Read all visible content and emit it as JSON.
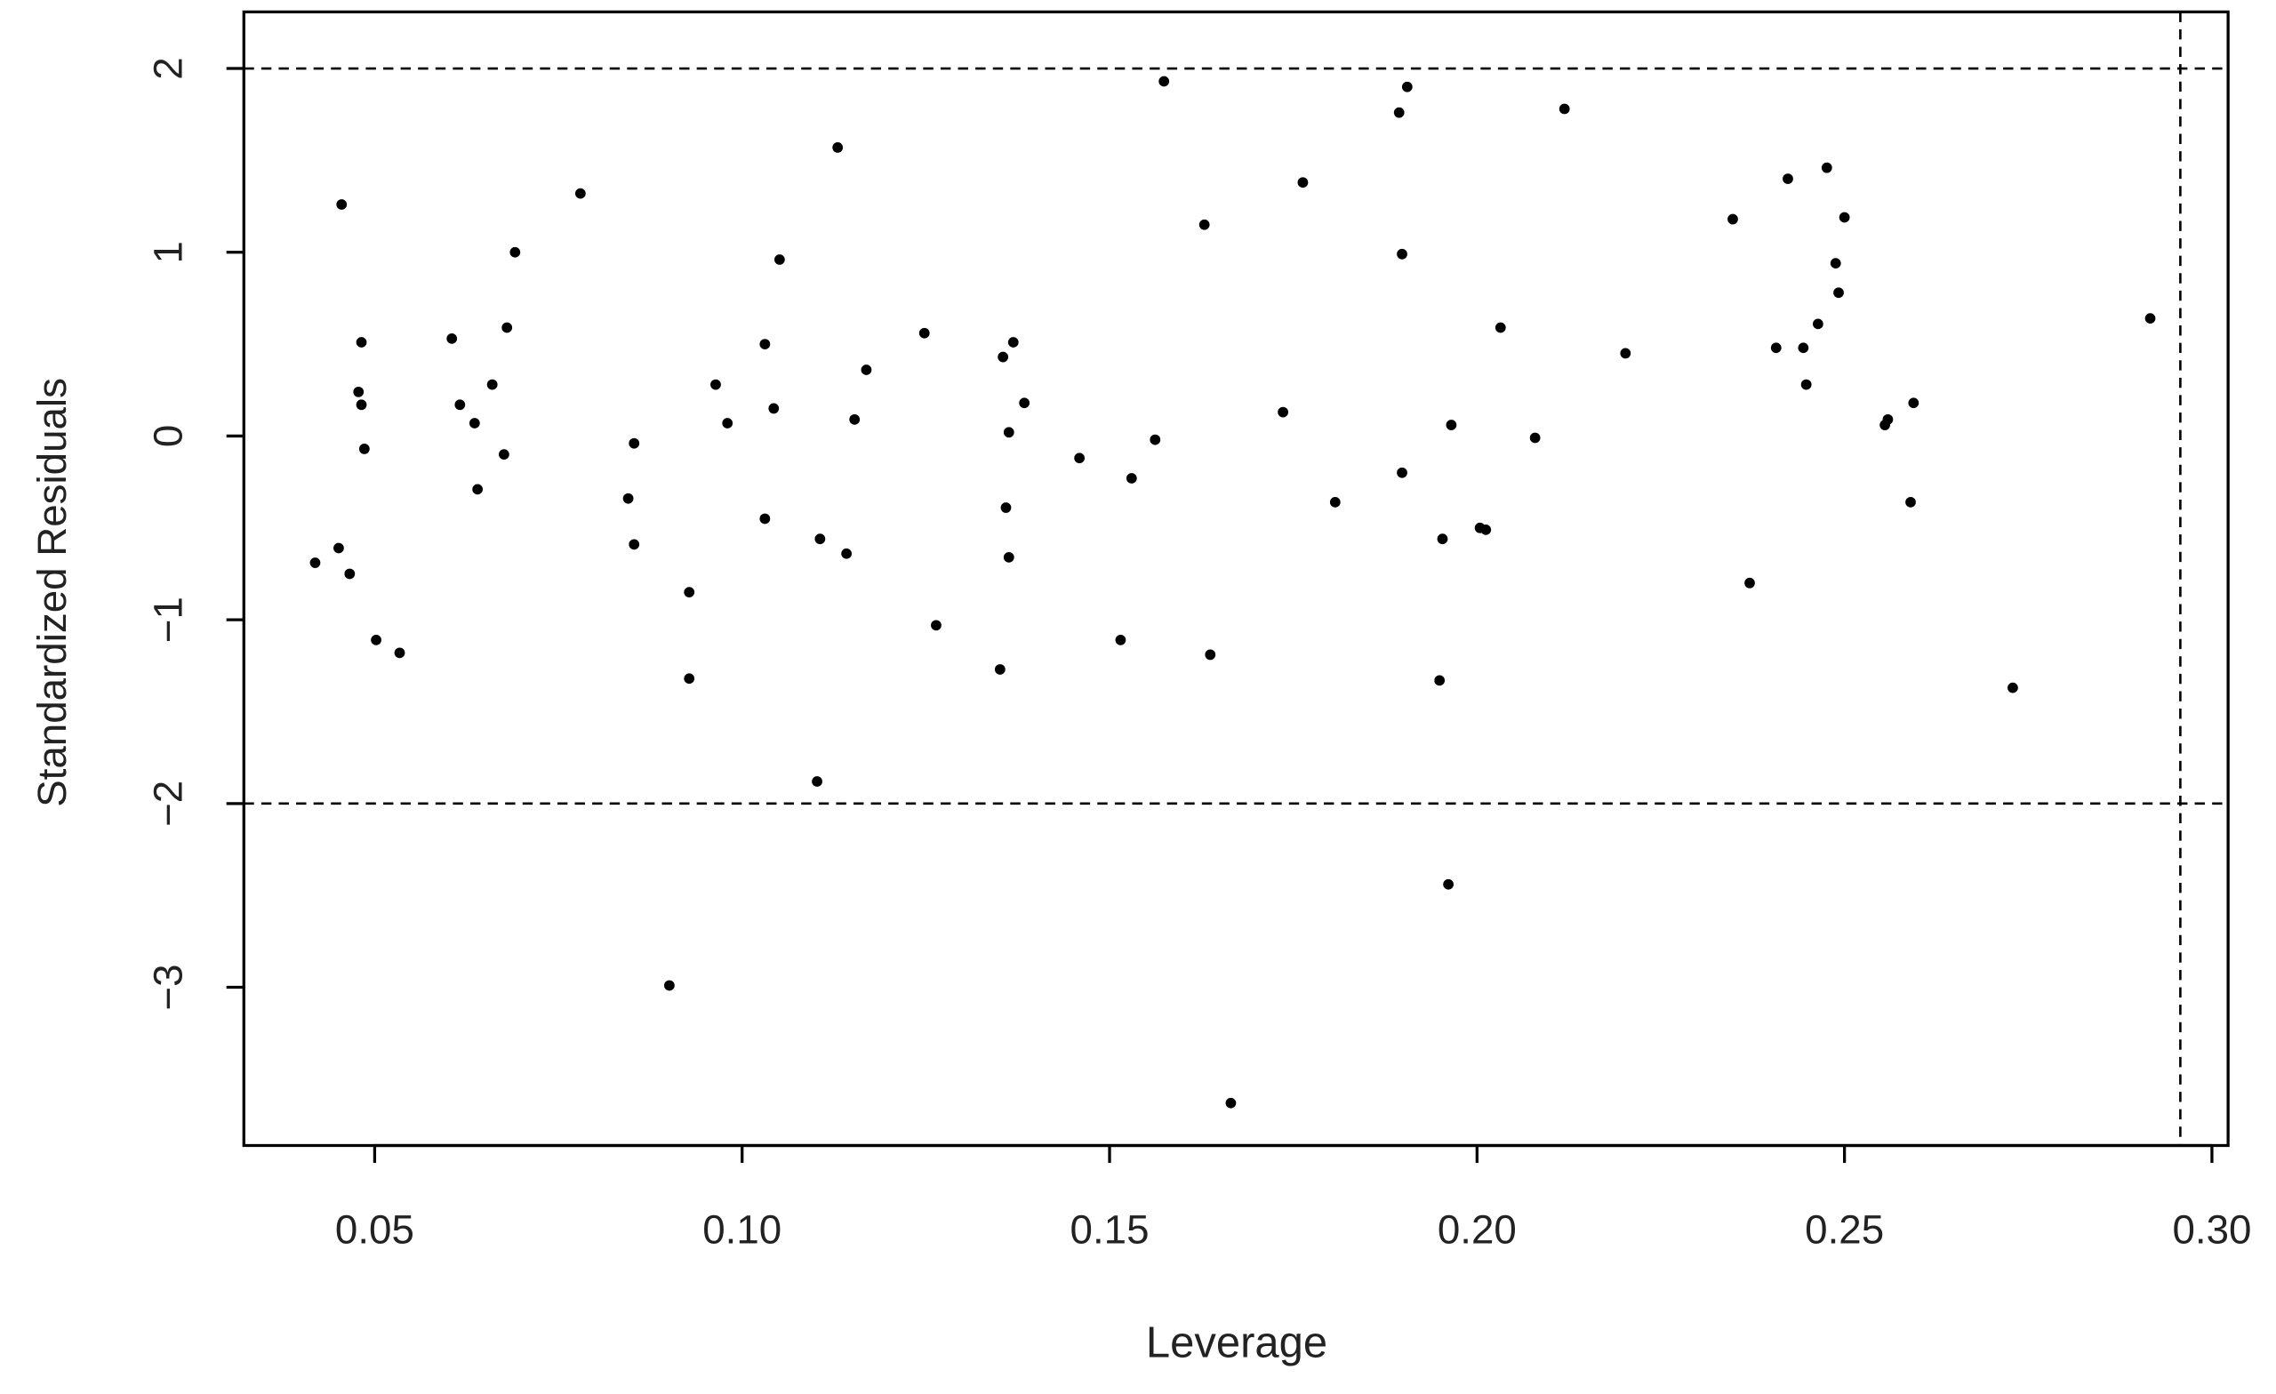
{
  "chart_data": {
    "type": "scatter",
    "x_label": "Leverage",
    "y_label": "Standardized Residuals",
    "xlim": [
      0.0322,
      0.3022
    ],
    "ylim": [
      -3.861,
      2.308
    ],
    "xticks": [
      0.05,
      {
        "value": 0.1,
        "label": "0.10"
      },
      0.15,
      {
        "value": 0.2,
        "label": "0.20"
      },
      0.25,
      {
        "value": 0.3,
        "label": "0.30"
      }
    ],
    "yticks": [
      {
        "value": -3,
        "label": "−3"
      },
      {
        "value": -2,
        "label": "−2"
      },
      {
        "value": -1,
        "label": "−1"
      },
      0,
      1,
      2
    ],
    "hlines": [
      2,
      -2
    ],
    "vlines": [
      0.2957
    ],
    "color": "#000000",
    "x": [
      0.0419,
      0.0451,
      0.0455,
      0.0466,
      0.0478,
      0.0482,
      0.0482,
      0.0486,
      0.0502,
      0.0534,
      0.0605,
      0.0616,
      0.0636,
      0.064,
      0.066,
      0.0676,
      0.068,
      0.0691,
      0.078,
      0.0845,
      0.0853,
      0.0853,
      0.0901,
      0.0928,
      0.0928,
      0.0964,
      0.098,
      0.1031,
      0.1031,
      0.1043,
      0.1051,
      0.1102,
      0.1106,
      0.113,
      0.1142,
      0.1153,
      0.1169,
      0.1248,
      0.1264,
      0.1351,
      0.1355,
      0.1359,
      0.1363,
      0.1363,
      0.1369,
      0.1384,
      0.1459,
      0.1515,
      0.153,
      0.1562,
      0.1574,
      0.1629,
      0.1637,
      0.1665,
      0.1736,
      0.1763,
      0.1807,
      0.1894,
      0.1898,
      0.1898,
      0.1905,
      0.1949,
      0.1953,
      0.1961,
      0.1965,
      0.2004,
      0.2012,
      0.2032,
      0.2079,
      0.2119,
      0.2202,
      0.2348,
      0.2371,
      0.2407,
      0.2423,
      0.2444,
      0.2448,
      0.2464,
      0.2476,
      0.2488,
      0.2492,
      0.25,
      0.2555,
      0.2559,
      0.259,
      0.2594,
      0.2729,
      0.2916
    ],
    "values": [
      -0.69,
      -0.61,
      1.26,
      -0.75,
      0.24,
      0.51,
      0.17,
      -0.07,
      -1.11,
      -1.18,
      0.53,
      0.17,
      0.07,
      -0.29,
      0.28,
      -0.1,
      0.59,
      1.0,
      1.32,
      -0.34,
      -0.04,
      -0.59,
      -2.99,
      -0.85,
      -1.32,
      0.28,
      0.07,
      0.5,
      -0.45,
      0.15,
      0.96,
      -1.88,
      -0.56,
      1.57,
      -0.64,
      0.09,
      0.36,
      0.56,
      -1.03,
      -1.27,
      0.43,
      -0.39,
      0.02,
      -0.66,
      0.51,
      0.18,
      -0.12,
      -1.11,
      -0.23,
      -0.02,
      1.93,
      1.15,
      -1.19,
      -3.63,
      0.13,
      1.38,
      -0.36,
      1.76,
      0.99,
      -0.2,
      1.9,
      -1.33,
      -0.56,
      -2.44,
      0.06,
      -0.5,
      -0.51,
      0.59,
      -0.01,
      1.78,
      0.45,
      1.18,
      -0.8,
      0.48,
      1.4,
      0.48,
      0.28,
      0.61,
      1.46,
      0.94,
      0.78,
      1.19,
      0.06,
      0.09,
      -0.36,
      0.18,
      -1.37,
      0.64
    ]
  }
}
